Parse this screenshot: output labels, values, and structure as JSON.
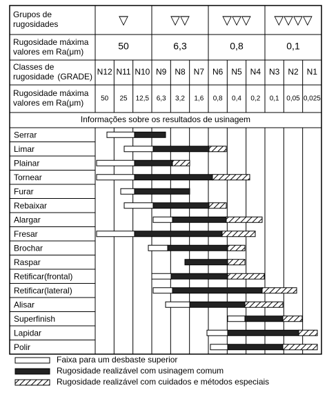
{
  "header": {
    "group_label": [
      "Grupos de",
      "rugosidades"
    ],
    "max_label": [
      "Rugosidade máxima",
      "valores em Ra(μm)"
    ],
    "class_label": [
      "Classes de",
      "rugosidade"
    ],
    "grade_label": "(GRADE)",
    "groups": [
      {
        "symbol": "▽",
        "value": "50"
      },
      {
        "symbol": "▽▽",
        "value": "6,3"
      },
      {
        "symbol": "▽▽▽",
        "value": "0,8"
      },
      {
        "symbol": "▽▽▽▽",
        "value": "0,1"
      }
    ]
  },
  "classes": [
    {
      "grade": "N12",
      "value": "50"
    },
    {
      "grade": "N11",
      "value": "25"
    },
    {
      "grade": "N10",
      "value": "12,5"
    },
    {
      "grade": "N9",
      "value": "6,3"
    },
    {
      "grade": "N8",
      "value": "3,2"
    },
    {
      "grade": "N7",
      "value": "1,6"
    },
    {
      "grade": "N6",
      "value": "0,8"
    },
    {
      "grade": "N5",
      "value": "0,4"
    },
    {
      "grade": "N4",
      "value": "0,2"
    },
    {
      "grade": "N3",
      "value": "0,1"
    },
    {
      "grade": "N2",
      "value": "0,05"
    },
    {
      "grade": "N1",
      "value": "0,025"
    }
  ],
  "section_title": "Informações sobre os resultados de usinagem",
  "processes": [
    "Serrar",
    "Limar",
    "Plainar",
    "Tornear",
    "Furar",
    "Rebaixar",
    "Alargar",
    "Fresar",
    "Brochar",
    "Raspar",
    "Retificar(frontal)",
    "Retificar(lateral)",
    "Alisar",
    "Superfinish",
    "Lapidar",
    "Polir"
  ],
  "legend": [
    "Faixa para um desbaste superior",
    "Rugosidade realizável com usinagem comum",
    "Rugosidade realizável com cuidados e métodos especiais"
  ]
}
